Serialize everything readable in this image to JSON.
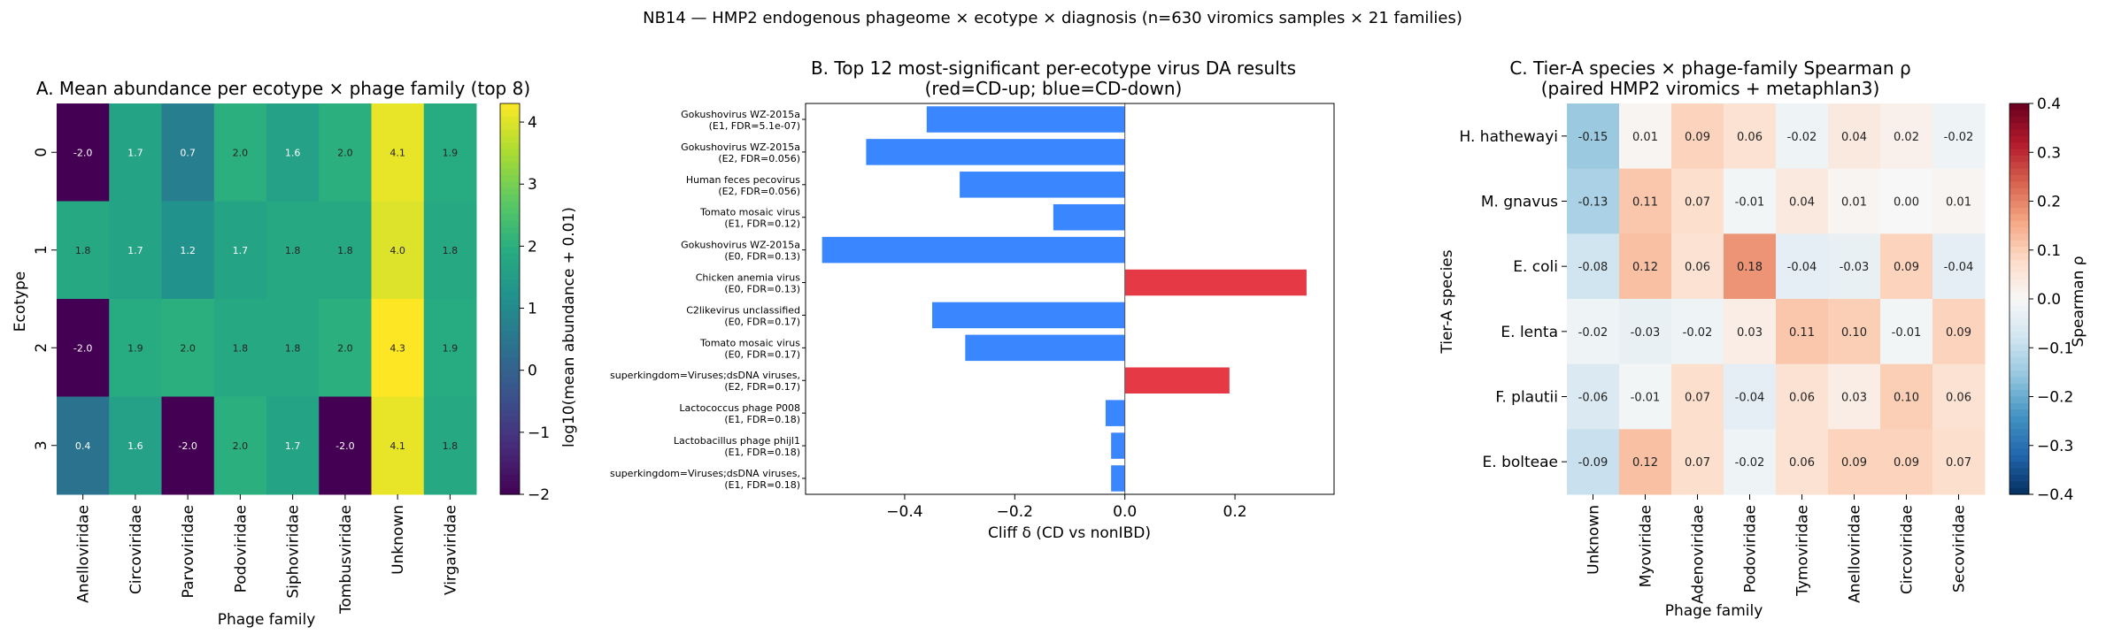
{
  "suptitle": "NB14 — HMP2 endogenous phageome × ecotype × diagnosis (n=630 viromics samples × 21 families)",
  "chart_data": [
    {
      "type": "heatmap",
      "title": "A. Mean abundance per ecotype × phage family (top 8)",
      "xlabel": "Phage family",
      "ylabel": "Ecotype",
      "x_categories": [
        "Anelloviridae",
        "Circoviridae",
        "Parvoviridae",
        "Podoviridae",
        "Siphoviridae",
        "Tombusviridae",
        "Unknown",
        "Virgaviridae"
      ],
      "y_categories": [
        "0",
        "1",
        "2",
        "3"
      ],
      "values": [
        [
          -2.0,
          1.7,
          0.7,
          2.0,
          1.6,
          2.0,
          4.1,
          1.9
        ],
        [
          1.8,
          1.7,
          1.2,
          1.7,
          1.8,
          1.8,
          4.0,
          1.8
        ],
        [
          -2.0,
          1.9,
          2.0,
          1.8,
          1.8,
          2.0,
          4.3,
          1.9
        ],
        [
          0.4,
          1.6,
          -2.0,
          2.0,
          1.7,
          -2.0,
          4.1,
          1.8
        ]
      ],
      "value_labels": [
        [
          "-2.0",
          "1.7",
          "0.7",
          "2.0",
          "1.6",
          "2.0",
          "4.1",
          "1.9"
        ],
        [
          "1.8",
          "1.7",
          "1.2",
          "1.7",
          "1.8",
          "1.8",
          "4.0",
          "1.8"
        ],
        [
          "-2.0",
          "1.9",
          "2.0",
          "1.8",
          "1.8",
          "2.0",
          "4.3",
          "1.9"
        ],
        [
          "0.4",
          "1.6",
          "-2.0",
          "2.0",
          "1.7",
          "-2.0",
          "4.1",
          "1.8"
        ]
      ],
      "colormap": "viridis",
      "colorbar_label": "log10(mean abundance + 0.01)",
      "vmin": -2,
      "vmax": 4.3,
      "colorbar_ticks": [
        -2,
        -1,
        0,
        1,
        2,
        3,
        4
      ],
      "colorbar_tick_labels": [
        "−2",
        "−1",
        "0",
        "1",
        "2",
        "3",
        "4"
      ]
    },
    {
      "type": "bar",
      "orientation": "horizontal",
      "title": "B. Top 12 most-significant per-ecotype virus DA results",
      "subtitle": "(red=CD-up; blue=CD-down)",
      "xlabel": "Cliff δ (CD vs nonIBD)",
      "xlim": [
        -0.58,
        0.38
      ],
      "x_ticks": [
        -0.4,
        -0.2,
        0.0,
        0.2
      ],
      "x_tick_labels": [
        "−0.4",
        "−0.2",
        "0.0",
        "0.2"
      ],
      "categories": [
        [
          "Gokushovirus WZ-2015a",
          "(E1, FDR=5.1e-07)"
        ],
        [
          "Gokushovirus WZ-2015a",
          "(E2, FDR=0.056)"
        ],
        [
          "Human feces pecovirus",
          "(E2, FDR=0.056)"
        ],
        [
          "Tomato mosaic virus",
          "(E1, FDR=0.12)"
        ],
        [
          "Gokushovirus WZ-2015a",
          "(E0, FDR=0.13)"
        ],
        [
          "Chicken anemia virus",
          "(E0, FDR=0.13)"
        ],
        [
          "C2likevirus unclassified",
          "(E0, FDR=0.17)"
        ],
        [
          "Tomato mosaic virus",
          "(E0, FDR=0.17)"
        ],
        [
          "superkingdom=Viruses;dsDNA viruses,",
          "(E2, FDR=0.17)"
        ],
        [
          "Lactococcus phage P008",
          "(E1, FDR=0.18)"
        ],
        [
          "Lactobacillus phage phijl1",
          "(E1, FDR=0.18)"
        ],
        [
          "superkingdom=Viruses;dsDNA viruses,",
          "(E1, FDR=0.18)"
        ]
      ],
      "values": [
        -0.36,
        -0.47,
        -0.3,
        -0.13,
        -0.55,
        0.33,
        -0.35,
        -0.29,
        0.19,
        -0.035,
        -0.025,
        -0.025
      ],
      "colors": {
        "up": "#e63946",
        "down": "#3a86ff"
      }
    },
    {
      "type": "heatmap",
      "title": "C. Tier-A species × phage-family Spearman ρ",
      "subtitle": "(paired HMP2 viromics + metaphlan3)",
      "xlabel": "Phage family",
      "ylabel": "Tier-A species",
      "x_categories": [
        "Unknown",
        "Myoviridae",
        "Adenoviridae",
        "Podoviridae",
        "Tymoviridae",
        "Anelloviridae",
        "Circoviridae",
        "Secoviridae"
      ],
      "y_categories": [
        "H. hathewayi",
        "M. gnavus",
        "E. coli",
        "E. lenta",
        "F. plautii",
        "E. bolteae"
      ],
      "values": [
        [
          -0.15,
          0.01,
          0.09,
          0.06,
          -0.02,
          0.04,
          0.02,
          -0.02
        ],
        [
          -0.13,
          0.11,
          0.07,
          -0.01,
          0.04,
          0.01,
          0.0,
          0.01
        ],
        [
          -0.08,
          0.12,
          0.06,
          0.18,
          -0.04,
          -0.03,
          0.09,
          -0.04
        ],
        [
          -0.02,
          -0.03,
          -0.02,
          0.03,
          0.11,
          0.1,
          -0.01,
          0.09
        ],
        [
          -0.06,
          -0.01,
          0.07,
          -0.04,
          0.06,
          0.03,
          0.1,
          0.06
        ],
        [
          -0.09,
          0.12,
          0.07,
          -0.02,
          0.06,
          0.09,
          0.09,
          0.07
        ]
      ],
      "value_labels": [
        [
          "-0.15",
          "0.01",
          "0.09",
          "0.06",
          "-0.02",
          "0.04",
          "0.02",
          "-0.02"
        ],
        [
          "-0.13",
          "0.11",
          "0.07",
          "-0.01",
          "0.04",
          "0.01",
          "0.00",
          "0.01"
        ],
        [
          "-0.08",
          "0.12",
          "0.06",
          "0.18",
          "-0.04",
          "-0.03",
          "0.09",
          "-0.04"
        ],
        [
          "-0.02",
          "-0.03",
          "-0.02",
          "0.03",
          "0.11",
          "0.10",
          "-0.01",
          "0.09"
        ],
        [
          "-0.06",
          "-0.01",
          "0.07",
          "-0.04",
          "0.06",
          "0.03",
          "0.10",
          "0.06"
        ],
        [
          "-0.09",
          "0.12",
          "0.07",
          "-0.02",
          "0.06",
          "0.09",
          "0.09",
          "0.07"
        ]
      ],
      "colormap": "RdBu_r",
      "colorbar_label": "Spearman ρ",
      "vmin": -0.4,
      "vmax": 0.4,
      "colorbar_ticks": [
        0.4,
        0.3,
        0.2,
        0.1,
        0.0,
        -0.1,
        -0.2,
        -0.3,
        -0.4
      ],
      "colorbar_tick_labels": [
        "0.4",
        "0.3",
        "0.2",
        "0.1",
        "0.0",
        "−0.1",
        "−0.2",
        "−0.3",
        "−0.4"
      ]
    }
  ]
}
